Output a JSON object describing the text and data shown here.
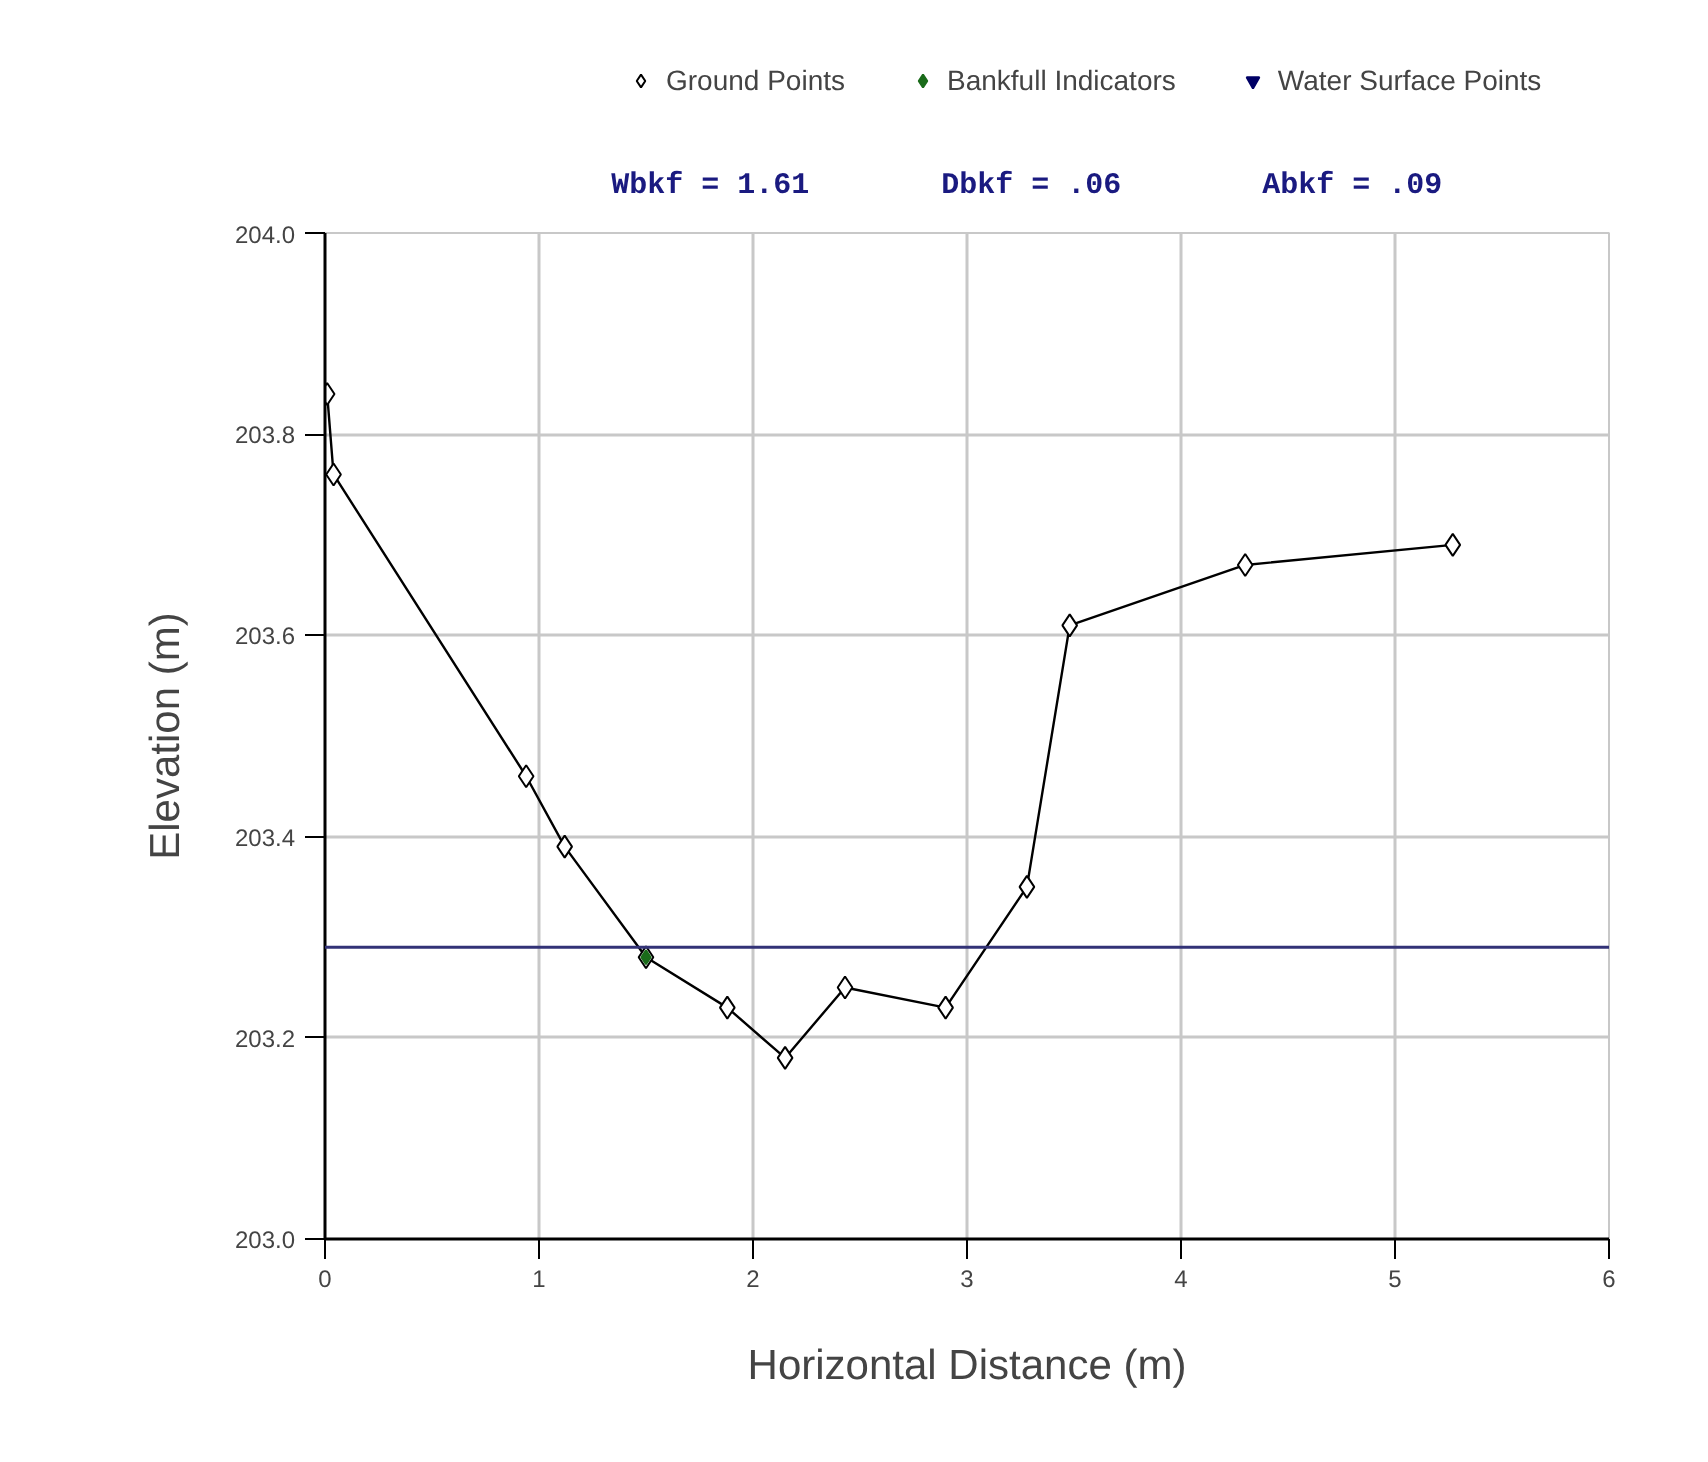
{
  "chart_data": {
    "type": "line",
    "xlabel": "Horizontal Distance (m)",
    "ylabel": "Elevation (m)",
    "annotations": [
      "Wbkf = 1.61",
      "Dbkf = .06",
      "Abkf = .09"
    ],
    "series": [
      {
        "name": "Ground Points",
        "marker": "diamond",
        "color": "#000000",
        "x": [
          0.01,
          0.04,
          0.94,
          1.12,
          1.5,
          1.88,
          2.15,
          2.43,
          2.9,
          3.28,
          3.48,
          4.3,
          5.27
        ],
        "values": [
          203.84,
          203.76,
          203.46,
          203.39,
          203.28,
          203.23,
          203.18,
          203.25,
          203.23,
          203.35,
          203.61,
          203.67,
          203.69
        ]
      },
      {
        "name": "Bankfull Indicators",
        "type": "scatter",
        "marker": "diamond",
        "color": "#1a6b1a",
        "x": [
          1.5
        ],
        "values": [
          203.28
        ]
      },
      {
        "name": "Water Surface Points",
        "type": "scatter",
        "marker": "inverted_triangle",
        "color": "#000066"
      }
    ],
    "ref_lines": [
      {
        "axis": "y",
        "value": 203.29,
        "color": "#333377"
      }
    ],
    "xlim": [
      0,
      6
    ],
    "xticks": [
      0,
      1,
      2,
      3,
      4,
      5,
      6
    ],
    "ylim": [
      203.0,
      204.0
    ],
    "yticks": [
      {
        "value": 203.0,
        "label": "203.0"
      },
      203.2,
      203.4,
      203.6,
      203.8,
      {
        "value": 204.0,
        "label": "204.0"
      }
    ],
    "grid": true,
    "legend": "top"
  }
}
